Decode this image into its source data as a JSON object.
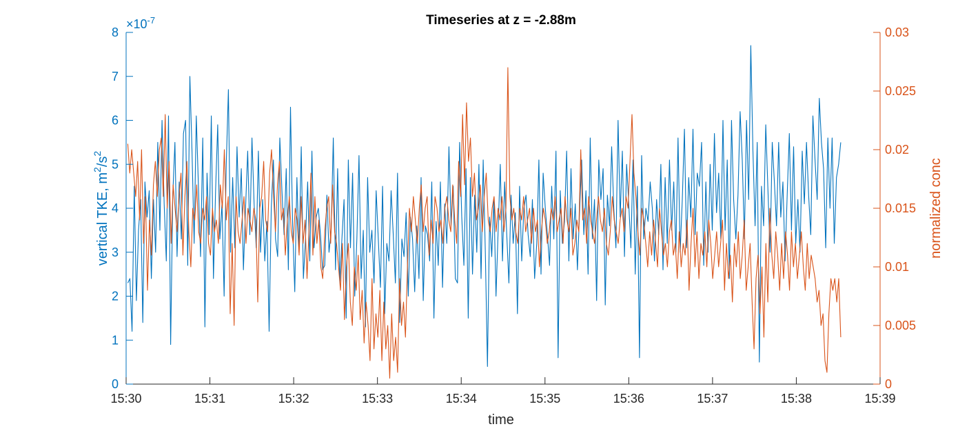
{
  "chart_data": {
    "type": "line",
    "title": "Timeseries at z = -2.88m",
    "xlabel": "time",
    "x_ticks": [
      "15:30",
      "15:31",
      "15:32",
      "15:33",
      "15:34",
      "15:35",
      "15:36",
      "15:37",
      "15:38",
      "15:39"
    ],
    "x_range_minutes": [
      0,
      9
    ],
    "left_axis": {
      "label_main": "vertical TKE, m",
      "label_sup1": "2",
      "label_mid": "/s",
      "label_sup2": "2",
      "exponent_prefix": "×10",
      "exponent_power": "-7",
      "ylim": [
        0,
        8
      ],
      "ticks": [
        "0",
        "1",
        "2",
        "3",
        "4",
        "5",
        "6",
        "7",
        "8"
      ],
      "color": "#0072BD"
    },
    "right_axis": {
      "label": "normalized conc",
      "ylim": [
        0,
        0.03
      ],
      "ticks": [
        "0",
        "0.005",
        "0.01",
        "0.015",
        "0.02",
        "0.025",
        "0.03"
      ],
      "color": "#D95319"
    },
    "series": [
      {
        "axis": "left",
        "color": "#0072BD",
        "x_start_minutes": 0.02,
        "x_end_minutes": 8.53,
        "values": [
          2.3,
          2.4,
          1.2,
          4.5,
          1.9,
          3.5,
          4.2,
          1.4,
          4.6,
          3.8,
          4.4,
          2.4,
          4.2,
          3.0,
          5.5,
          3.5,
          6.0,
          4.1,
          2.8,
          6.1,
          0.9,
          4.3,
          5.5,
          2.9,
          4.6,
          3.3,
          5.7,
          6.0,
          2.7,
          7.0,
          5.3,
          3.2,
          6.1,
          4.5,
          2.9,
          5.6,
          1.3,
          4.8,
          3.4,
          6.1,
          2.4,
          4.4,
          5.9,
          3.3,
          4.1,
          2.0,
          5.0,
          6.7,
          3.0,
          4.7,
          3.1,
          5.4,
          3.8,
          4.9,
          2.6,
          4.0,
          5.3,
          3.4,
          5.6,
          4.1,
          3.1,
          5.3,
          3.0,
          4.2,
          2.8,
          3.7,
          1.2,
          4.0,
          5.1,
          3.3,
          2.9,
          5.6,
          4.4,
          3.4,
          4.9,
          2.6,
          6.3,
          3.6,
          2.1,
          4.7,
          3.0,
          5.4,
          2.4,
          3.3,
          4.6,
          2.8,
          5.3,
          3.1,
          3.8,
          4.0,
          3.4,
          2.6,
          2.7,
          4.3,
          3.0,
          3.5,
          5.6,
          2.6,
          4.9,
          2.3,
          3.3,
          4.2,
          1.5,
          5.1,
          3.1,
          4.8,
          2.0,
          3.3,
          5.2,
          2.4,
          3.5,
          1.3,
          4.7,
          3.0,
          3.5,
          2.3,
          4.4,
          3.3,
          2.2,
          4.5,
          1.6,
          3.2,
          2.8,
          4.4,
          3.4,
          2.3,
          4.8,
          1.4,
          3.3,
          2.9,
          3.9,
          2.0,
          3.8,
          3.3,
          2.1,
          3.6,
          2.4,
          4.7,
          1.9,
          3.6,
          3.4,
          2.8,
          4.6,
          1.5,
          3.7,
          2.7,
          4.6,
          2.2,
          4.1,
          3.2,
          5.4,
          3.6,
          4.5,
          2.4,
          2.3,
          5.5,
          3.8,
          2.7,
          4.9,
          1.5,
          4.7,
          2.5,
          4.3,
          3.0,
          5.0,
          2.4,
          5.1,
          3.0,
          0.4,
          3.8,
          2.9,
          4.2,
          2.0,
          3.5,
          5.0,
          2.8,
          4.6,
          3.4,
          2.3,
          4.3,
          3.2,
          3.9,
          1.6,
          4.5,
          2.8,
          4.0,
          4.3,
          3.4,
          2.9,
          4.2,
          2.4,
          3.2,
          5.1,
          2.5,
          4.8,
          4.0,
          3.4,
          2.7,
          4.5,
          3.3,
          5.3,
          0.6,
          4.4,
          3.2,
          3.7,
          5.3,
          2.8,
          4.9,
          3.3,
          4.1,
          2.6,
          3.9,
          5.1,
          3.4,
          4.4,
          2.5,
          5.6,
          3.3,
          4.2,
          1.9,
          5.1,
          4.2,
          4.9,
          1.8,
          4.3,
          3.6,
          5.4,
          4.0,
          3.1,
          6.0,
          3.8,
          5.3,
          2.9,
          5.0,
          4.1,
          3.1,
          5.1,
          2.5,
          4.5,
          0.6,
          5.2,
          3.3,
          4.0,
          3.7,
          4.6,
          4.0,
          2.8,
          4.2,
          3.4,
          5.0,
          2.6,
          4.7,
          3.2,
          5.1,
          3.5,
          4.6,
          3.0,
          5.6,
          3.0,
          4.2,
          5.8,
          3.1,
          4.7,
          3.8,
          5.8,
          3.4,
          4.8,
          4.5,
          5.5,
          2.7,
          4.6,
          3.0,
          5.0,
          3.5,
          5.7,
          3.9,
          4.8,
          3.3,
          6.0,
          3.5,
          5.1,
          2.4,
          6.0,
          4.2,
          3.3,
          4.3,
          6.2,
          5.1,
          3.3,
          6.0,
          4.2,
          7.7,
          5.3,
          3.6,
          5.5,
          0.5,
          4.5,
          3.6,
          5.9,
          4.4,
          3.0,
          5.5,
          4.6,
          3.6,
          5.5,
          3.8,
          4.6,
          2.8,
          4.3,
          5.7,
          3.5,
          5.4,
          3.2,
          4.2,
          3.0,
          5.3,
          4.1,
          5.5,
          4.3,
          3.4,
          6.1,
          5.1,
          4.2,
          6.5,
          5.5,
          4.9,
          3.1,
          5.6,
          4.0,
          5.6,
          3.2,
          4.7,
          5.0,
          5.5
        ]
      },
      {
        "axis": "right",
        "color": "#D95319",
        "x_start_minutes": 0.02,
        "x_end_minutes": 8.53,
        "values": [
          0.0205,
          0.018,
          0.02,
          0.018,
          0.016,
          0.019,
          0.014,
          0.02,
          0.012,
          0.016,
          0.008,
          0.014,
          0.011,
          0.017,
          0.019,
          0.016,
          0.02,
          0.021,
          0.016,
          0.023,
          0.015,
          0.019,
          0.012,
          0.017,
          0.015,
          0.013,
          0.016,
          0.018,
          0.011,
          0.016,
          0.019,
          0.013,
          0.01,
          0.015,
          0.014,
          0.017,
          0.013,
          0.012,
          0.015,
          0.014,
          0.016,
          0.012,
          0.011,
          0.015,
          0.013,
          0.014,
          0.012,
          0.017,
          0.015,
          0.02,
          0.014,
          0.016,
          0.006,
          0.012,
          0.005,
          0.016,
          0.013,
          0.012,
          0.014,
          0.016,
          0.012,
          0.015,
          0.014,
          0.013,
          0.015,
          0.014,
          0.007,
          0.015,
          0.016,
          0.019,
          0.014,
          0.013,
          0.018,
          0.02,
          0.016,
          0.013,
          0.017,
          0.019,
          0.014,
          0.015,
          0.011,
          0.014,
          0.016,
          0.013,
          0.012,
          0.015,
          0.014,
          0.011,
          0.016,
          0.012,
          0.014,
          0.009,
          0.013,
          0.018,
          0.011,
          0.016,
          0.012,
          0.014,
          0.01,
          0.009,
          0.013,
          0.015,
          0.016,
          0.012,
          0.017,
          0.013,
          0.012,
          0.01,
          0.008,
          0.012,
          0.0055,
          0.01,
          0.012,
          0.007,
          0.005,
          0.01,
          0.008,
          0.011,
          0.0055,
          0.008,
          0.0035,
          0.007,
          0.005,
          0.002,
          0.009,
          0.003,
          0.006,
          0.004,
          0.008,
          0.002,
          0.007,
          0.003,
          0.005,
          0.0005,
          0.006,
          0.002,
          0.004,
          0.001,
          0.009,
          0.005,
          0.007,
          0.004,
          0.01,
          0.015,
          0.013,
          0.016,
          0.014,
          0.012,
          0.015,
          0.017,
          0.013,
          0.015,
          0.016,
          0.011,
          0.014,
          0.012,
          0.016,
          0.015,
          0.013,
          0.014,
          0.012,
          0.015,
          0.016,
          0.014,
          0.013,
          0.017,
          0.014,
          0.012,
          0.019,
          0.016,
          0.023,
          0.017,
          0.024,
          0.019,
          0.021,
          0.016,
          0.018,
          0.014,
          0.015,
          0.017,
          0.013,
          0.016,
          0.018,
          0.014,
          0.013,
          0.015,
          0.016,
          0.013,
          0.015,
          0.014,
          0.016,
          0.013,
          0.015,
          0.027,
          0.016,
          0.014,
          0.015,
          0.013,
          0.012,
          0.015,
          0.014,
          0.016,
          0.013,
          0.014,
          0.015,
          0.012,
          0.015,
          0.013,
          0.014,
          0.01,
          0.013,
          0.015,
          0.014,
          0.012,
          0.013,
          0.015,
          0.014,
          0.016,
          0.013,
          0.014,
          0.015,
          0.012,
          0.016,
          0.014,
          0.013,
          0.015,
          0.011,
          0.012,
          0.014,
          0.013,
          0.02,
          0.014,
          0.015,
          0.012,
          0.016,
          0.014,
          0.013,
          0.012,
          0.014,
          0.016,
          0.014,
          0.013,
          0.015,
          0.012,
          0.011,
          0.013,
          0.016,
          0.014,
          0.013,
          0.012,
          0.014,
          0.015,
          0.013,
          0.016,
          0.015,
          0.019,
          0.023,
          0.018,
          0.016,
          0.013,
          0.011,
          0.015,
          0.014,
          0.012,
          0.01,
          0.013,
          0.011,
          0.014,
          0.012,
          0.01,
          0.015,
          0.013,
          0.011,
          0.012,
          0.01,
          0.013,
          0.014,
          0.011,
          0.012,
          0.009,
          0.013,
          0.01,
          0.012,
          0.011,
          0.014,
          0.008,
          0.012,
          0.015,
          0.01,
          0.013,
          0.009,
          0.012,
          0.011,
          0.013,
          0.01,
          0.014,
          0.012,
          0.009,
          0.011,
          0.013,
          0.01,
          0.012,
          0.014,
          0.008,
          0.012,
          0.009,
          0.011,
          0.007,
          0.012,
          0.01,
          0.013,
          0.009,
          0.011,
          0.014,
          0.008,
          0.01,
          0.012,
          0.007,
          0.003,
          0.009,
          0.011,
          0.006,
          0.01,
          0.004,
          0.012,
          0.007,
          0.015,
          0.011,
          0.009,
          0.013,
          0.011,
          0.008,
          0.012,
          0.009,
          0.013,
          0.011,
          0.008,
          0.013,
          0.01,
          0.012,
          0.009,
          0.011,
          0.013,
          0.01,
          0.008,
          0.012,
          0.009,
          0.011,
          0.01,
          0.009,
          0.007,
          0.008,
          0.005,
          0.006,
          0.002,
          0.001,
          0.006,
          0.009,
          0.008,
          0.009,
          0.007,
          0.009,
          0.004
        ]
      }
    ]
  }
}
